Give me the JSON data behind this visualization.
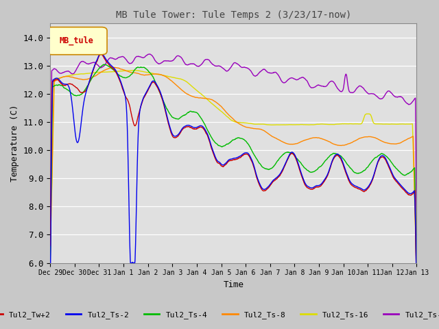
{
  "title": "MB Tule Tower: Tule Temps 2 (3/23/17-now)",
  "xlabel": "Time",
  "ylabel": "Temperature (C)",
  "ylim": [
    6.0,
    14.5
  ],
  "yticks": [
    6.0,
    7.0,
    8.0,
    9.0,
    10.0,
    11.0,
    12.0,
    13.0,
    14.0
  ],
  "legend_label": "MB_tule",
  "series_colors": {
    "Tul2_Tw+2": "#cc0000",
    "Tul2_Ts-2": "#0000ee",
    "Tul2_Ts-4": "#00bb00",
    "Tul2_Ts-8": "#ff8800",
    "Tul2_Ts-16": "#dddd00",
    "Tul2_Ts-32": "#9900bb"
  },
  "x_tick_labels": [
    "Dec 29",
    "Dec 30",
    "Dec 31",
    "Jan 1",
    "Jan 2",
    "Jan 3",
    "Jan 4",
    "Jan 5",
    "Jan 6",
    "Jan 7",
    "Jan 8",
    "Jan 9",
    "Jan 10",
    "Jan 11",
    "Jan 12",
    "Jan 13"
  ],
  "fig_bg": "#c8c8c8",
  "plot_bg": "#e0e0e0",
  "grid_color": "#ffffff"
}
